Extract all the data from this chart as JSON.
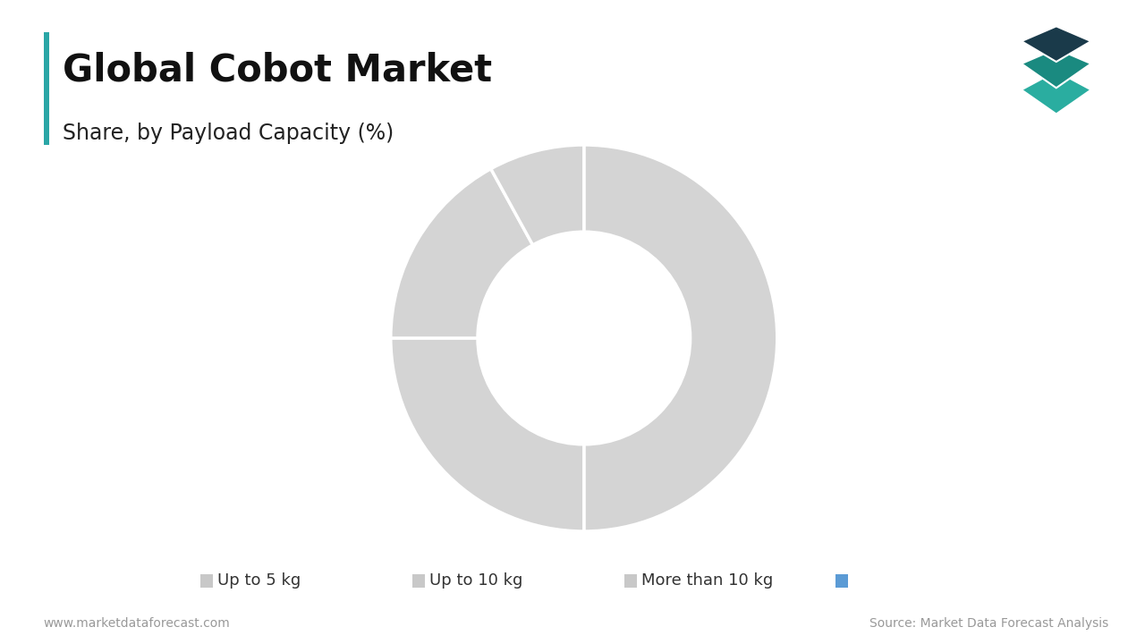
{
  "title_main": "Global Cobot Market",
  "title_sub": "Share, by Payload Capacity (%)",
  "segments": [
    "Up to 5 kg",
    "Up to 10 kg",
    "More than 10 kg",
    ""
  ],
  "values": [
    50,
    25,
    17,
    8
  ],
  "pie_color": "#d4d4d4",
  "legend_colors": [
    "#c8c8c8",
    "#c8c8c8",
    "#c8c8c8",
    "#5b9bd5"
  ],
  "background_color": "#ffffff",
  "accent_color": "#2aa6a6",
  "footer_left": "www.marketdataforecast.com",
  "footer_right": "Source: Market Data Forecast Analysis",
  "wedge_edge_color": "#ffffff",
  "donut_width": 0.45
}
